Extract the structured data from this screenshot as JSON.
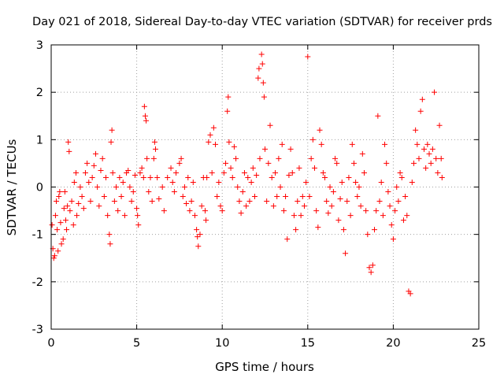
{
  "colors": {
    "series": "#ff0000",
    "grid": "#a0a0a0",
    "axis": "#000000"
  },
  "chart_data": {
    "type": "scatter",
    "title": "Day 021 of 2018, Sidereal Day-to-day VTEC variation (SDTVAR) for receiver prds",
    "xlabel": "GPS time / hours",
    "ylabel": "SDTVAR / TECUs",
    "xlim": [
      0,
      25
    ],
    "ylim": [
      -3,
      3
    ],
    "xticks": [
      0,
      5,
      10,
      15,
      20,
      25
    ],
    "yticks": [
      -3,
      -2,
      -1,
      0,
      1,
      2,
      3
    ],
    "grid": true,
    "marker": "plus",
    "series": [
      {
        "name": "SDTVAR",
        "points": [
          [
            0.05,
            -0.8
          ],
          [
            0.1,
            -1.3
          ],
          [
            0.15,
            -1.5
          ],
          [
            0.2,
            -1.45
          ],
          [
            0.25,
            -0.6
          ],
          [
            0.3,
            -0.3
          ],
          [
            0.35,
            -0.9
          ],
          [
            0.4,
            -1.35
          ],
          [
            0.45,
            -0.2
          ],
          [
            0.5,
            -0.1
          ],
          [
            0.55,
            -0.75
          ],
          [
            0.6,
            -1.2
          ],
          [
            0.7,
            -1.1
          ],
          [
            0.75,
            -0.45
          ],
          [
            0.8,
            -0.1
          ],
          [
            0.85,
            -0.7
          ],
          [
            0.9,
            -0.9
          ],
          [
            0.95,
            -0.4
          ],
          [
            1.0,
            0.95
          ],
          [
            1.05,
            0.75
          ],
          [
            1.1,
            -0.5
          ],
          [
            1.2,
            -0.3
          ],
          [
            1.3,
            -0.8
          ],
          [
            1.35,
            0.1
          ],
          [
            1.45,
            0.3
          ],
          [
            1.5,
            -0.6
          ],
          [
            1.6,
            -0.35
          ],
          [
            1.7,
            0.0
          ],
          [
            1.8,
            -0.2
          ],
          [
            1.9,
            -0.45
          ],
          [
            2.0,
            0.3
          ],
          [
            2.1,
            0.5
          ],
          [
            2.2,
            0.1
          ],
          [
            2.3,
            -0.3
          ],
          [
            2.4,
            0.2
          ],
          [
            2.5,
            0.45
          ],
          [
            2.6,
            0.7
          ],
          [
            2.7,
            0.0
          ],
          [
            2.8,
            -0.4
          ],
          [
            2.9,
            0.35
          ],
          [
            3.0,
            0.6
          ],
          [
            3.1,
            -0.2
          ],
          [
            3.2,
            0.2
          ],
          [
            3.3,
            -0.6
          ],
          [
            3.4,
            -1.0
          ],
          [
            3.45,
            -1.2
          ],
          [
            3.5,
            0.95
          ],
          [
            3.55,
            1.2
          ],
          [
            3.6,
            0.3
          ],
          [
            3.7,
            -0.3
          ],
          [
            3.8,
            0.0
          ],
          [
            3.9,
            -0.5
          ],
          [
            4.0,
            0.2
          ],
          [
            4.1,
            -0.2
          ],
          [
            4.2,
            0.1
          ],
          [
            4.3,
            -0.6
          ],
          [
            4.4,
            0.3
          ],
          [
            4.5,
            0.35
          ],
          [
            4.6,
            0.0
          ],
          [
            4.7,
            -0.3
          ],
          [
            4.8,
            -0.1
          ],
          [
            4.9,
            0.25
          ],
          [
            5.0,
            -0.45
          ],
          [
            5.05,
            -0.6
          ],
          [
            5.1,
            -0.8
          ],
          [
            5.2,
            0.3
          ],
          [
            5.3,
            0.4
          ],
          [
            5.4,
            0.2
          ],
          [
            5.45,
            1.7
          ],
          [
            5.5,
            1.5
          ],
          [
            5.55,
            1.4
          ],
          [
            5.6,
            0.6
          ],
          [
            5.7,
            -0.1
          ],
          [
            5.8,
            0.2
          ],
          [
            5.9,
            -0.3
          ],
          [
            6.0,
            0.6
          ],
          [
            6.05,
            0.95
          ],
          [
            6.1,
            0.8
          ],
          [
            6.2,
            0.2
          ],
          [
            6.3,
            -0.25
          ],
          [
            6.5,
            0.0
          ],
          [
            6.6,
            -0.5
          ],
          [
            6.8,
            0.2
          ],
          [
            7.0,
            0.4
          ],
          [
            7.1,
            0.1
          ],
          [
            7.2,
            -0.1
          ],
          [
            7.3,
            0.3
          ],
          [
            7.5,
            0.5
          ],
          [
            7.6,
            0.6
          ],
          [
            7.7,
            -0.2
          ],
          [
            7.8,
            0.0
          ],
          [
            7.9,
            -0.35
          ],
          [
            8.0,
            0.2
          ],
          [
            8.1,
            -0.5
          ],
          [
            8.2,
            -0.3
          ],
          [
            8.3,
            0.1
          ],
          [
            8.4,
            -0.6
          ],
          [
            8.5,
            -0.9
          ],
          [
            8.55,
            -1.05
          ],
          [
            8.6,
            -1.25
          ],
          [
            8.7,
            -1.0
          ],
          [
            8.8,
            -0.4
          ],
          [
            8.9,
            0.2
          ],
          [
            9.0,
            -0.5
          ],
          [
            9.05,
            -0.7
          ],
          [
            9.1,
            0.2
          ],
          [
            9.2,
            0.95
          ],
          [
            9.3,
            1.1
          ],
          [
            9.4,
            0.3
          ],
          [
            9.5,
            1.25
          ],
          [
            9.6,
            0.9
          ],
          [
            9.7,
            -0.2
          ],
          [
            9.8,
            0.1
          ],
          [
            9.9,
            -0.4
          ],
          [
            10.0,
            -0.5
          ],
          [
            10.1,
            0.3
          ],
          [
            10.2,
            0.5
          ],
          [
            10.3,
            1.6
          ],
          [
            10.35,
            1.9
          ],
          [
            10.4,
            0.95
          ],
          [
            10.5,
            0.4
          ],
          [
            10.6,
            0.2
          ],
          [
            10.7,
            0.85
          ],
          [
            10.8,
            0.6
          ],
          [
            10.9,
            0.0
          ],
          [
            11.0,
            -0.3
          ],
          [
            11.1,
            -0.55
          ],
          [
            11.2,
            -0.1
          ],
          [
            11.3,
            0.3
          ],
          [
            11.4,
            -0.4
          ],
          [
            11.5,
            0.2
          ],
          [
            11.6,
            -0.3
          ],
          [
            11.7,
            0.1
          ],
          [
            11.8,
            0.4
          ],
          [
            11.9,
            -0.2
          ],
          [
            12.0,
            0.25
          ],
          [
            12.1,
            2.3
          ],
          [
            12.15,
            2.5
          ],
          [
            12.2,
            0.6
          ],
          [
            12.3,
            2.8
          ],
          [
            12.35,
            2.6
          ],
          [
            12.4,
            2.2
          ],
          [
            12.45,
            1.9
          ],
          [
            12.5,
            0.8
          ],
          [
            12.6,
            -0.3
          ],
          [
            12.7,
            0.5
          ],
          [
            12.8,
            1.3
          ],
          [
            12.9,
            0.2
          ],
          [
            13.0,
            -0.4
          ],
          [
            13.1,
            0.3
          ],
          [
            13.2,
            -0.2
          ],
          [
            13.3,
            0.6
          ],
          [
            13.4,
            0.0
          ],
          [
            13.5,
            0.9
          ],
          [
            13.6,
            -0.5
          ],
          [
            13.7,
            -0.2
          ],
          [
            13.8,
            -1.1
          ],
          [
            13.9,
            0.25
          ],
          [
            14.0,
            0.8
          ],
          [
            14.1,
            0.3
          ],
          [
            14.2,
            -0.6
          ],
          [
            14.3,
            -0.9
          ],
          [
            14.4,
            -0.3
          ],
          [
            14.5,
            0.4
          ],
          [
            14.6,
            -0.6
          ],
          [
            14.7,
            -0.2
          ],
          [
            14.8,
            -0.4
          ],
          [
            14.9,
            0.1
          ],
          [
            15.0,
            2.75
          ],
          [
            15.1,
            -0.2
          ],
          [
            15.2,
            0.6
          ],
          [
            15.3,
            1.0
          ],
          [
            15.4,
            0.4
          ],
          [
            15.5,
            -0.5
          ],
          [
            15.6,
            -0.85
          ],
          [
            15.7,
            1.2
          ],
          [
            15.8,
            0.9
          ],
          [
            15.9,
            0.3
          ],
          [
            16.0,
            0.2
          ],
          [
            16.1,
            -0.3
          ],
          [
            16.2,
            -0.55
          ],
          [
            16.3,
            0.0
          ],
          [
            16.4,
            -0.4
          ],
          [
            16.5,
            -0.1
          ],
          [
            16.6,
            0.6
          ],
          [
            16.7,
            0.5
          ],
          [
            16.8,
            -0.7
          ],
          [
            16.9,
            -0.25
          ],
          [
            17.0,
            0.1
          ],
          [
            17.1,
            -0.9
          ],
          [
            17.2,
            -1.4
          ],
          [
            17.3,
            -0.3
          ],
          [
            17.4,
            0.2
          ],
          [
            17.5,
            -0.6
          ],
          [
            17.6,
            0.9
          ],
          [
            17.7,
            0.5
          ],
          [
            17.8,
            0.1
          ],
          [
            17.9,
            -0.2
          ],
          [
            18.0,
            0.0
          ],
          [
            18.1,
            -0.4
          ],
          [
            18.2,
            0.7
          ],
          [
            18.3,
            0.3
          ],
          [
            18.4,
            -0.5
          ],
          [
            18.5,
            -1.0
          ],
          [
            18.6,
            -1.7
          ],
          [
            18.7,
            -1.8
          ],
          [
            18.8,
            -1.65
          ],
          [
            18.9,
            -0.9
          ],
          [
            19.0,
            -0.5
          ],
          [
            19.1,
            1.5
          ],
          [
            19.2,
            -0.3
          ],
          [
            19.3,
            0.1
          ],
          [
            19.4,
            -0.6
          ],
          [
            19.5,
            0.9
          ],
          [
            19.6,
            0.5
          ],
          [
            19.7,
            -0.1
          ],
          [
            19.8,
            -0.4
          ],
          [
            19.9,
            -0.8
          ],
          [
            20.0,
            -1.1
          ],
          [
            20.1,
            -0.5
          ],
          [
            20.2,
            0.0
          ],
          [
            20.3,
            -0.3
          ],
          [
            20.4,
            0.3
          ],
          [
            20.5,
            0.2
          ],
          [
            20.6,
            -0.7
          ],
          [
            20.7,
            -0.2
          ],
          [
            20.8,
            -0.6
          ],
          [
            20.9,
            -2.2
          ],
          [
            21.0,
            -2.25
          ],
          [
            21.1,
            0.1
          ],
          [
            21.2,
            0.5
          ],
          [
            21.3,
            1.2
          ],
          [
            21.4,
            0.9
          ],
          [
            21.5,
            0.6
          ],
          [
            21.6,
            1.6
          ],
          [
            21.7,
            1.85
          ],
          [
            21.8,
            0.8
          ],
          [
            21.9,
            0.4
          ],
          [
            22.0,
            0.9
          ],
          [
            22.1,
            0.7
          ],
          [
            22.2,
            0.5
          ],
          [
            22.3,
            0.8
          ],
          [
            22.4,
            2.0
          ],
          [
            22.5,
            0.6
          ],
          [
            22.6,
            0.3
          ],
          [
            22.7,
            1.3
          ],
          [
            22.8,
            0.6
          ],
          [
            22.85,
            0.2
          ]
        ]
      }
    ]
  }
}
